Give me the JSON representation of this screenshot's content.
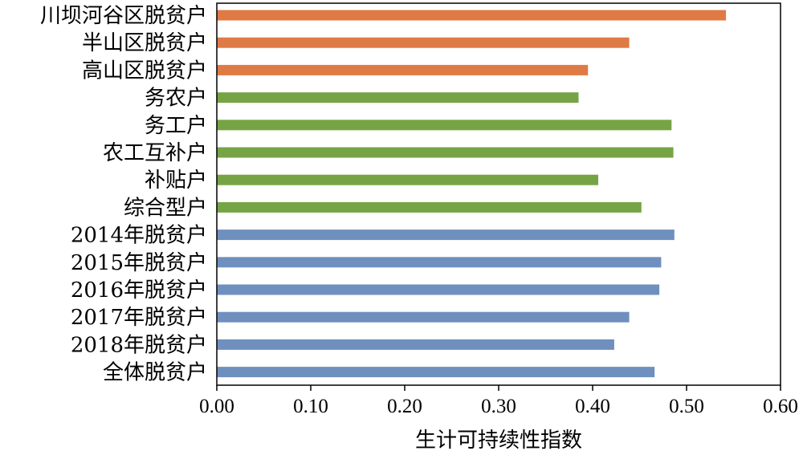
{
  "chart_data": {
    "type": "bar",
    "orientation": "horizontal",
    "title": "",
    "xlabel": "生计可持续性指数",
    "ylabel": "",
    "xlim": [
      0,
      0.6
    ],
    "xticks": [
      "0.00",
      "0.10",
      "0.20",
      "0.30",
      "0.40",
      "0.50",
      "0.60"
    ],
    "grid": false,
    "legend": "none",
    "categories": [
      "川坝河谷区脱贫户",
      "半山区脱贫户",
      "高山区脱贫户",
      "务农户",
      "务工户",
      "农工互补户",
      "补贴户",
      "综合型户",
      "2014年脱贫户",
      "2015年脱贫户",
      "2016年脱贫户",
      "2017年脱贫户",
      "2018年脱贫户",
      "全体脱贫户"
    ],
    "values": [
      0.542,
      0.439,
      0.395,
      0.385,
      0.484,
      0.486,
      0.406,
      0.452,
      0.487,
      0.473,
      0.471,
      0.439,
      0.423,
      0.466
    ],
    "bar_colors": [
      "#E07A45",
      "#E07A45",
      "#E07A45",
      "#76A444",
      "#76A444",
      "#76A444",
      "#76A444",
      "#76A444",
      "#6F90BE",
      "#6F90BE",
      "#6F90BE",
      "#6F90BE",
      "#6F90BE",
      "#6F90BE"
    ]
  }
}
